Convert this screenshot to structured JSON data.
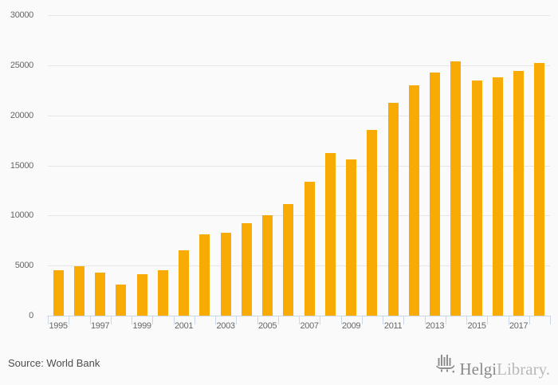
{
  "chart_data": {
    "type": "bar",
    "title": "",
    "xlabel": "",
    "ylabel": "",
    "categories": [
      "1995",
      "1996",
      "1997",
      "1998",
      "1999",
      "2000",
      "2001",
      "2002",
      "2003",
      "2004",
      "2005",
      "2006",
      "2007",
      "2008",
      "2009",
      "2010",
      "2011",
      "2012",
      "2013",
      "2014",
      "2015",
      "2016",
      "2017",
      "2018"
    ],
    "values": [
      4550,
      4900,
      4300,
      3100,
      4150,
      4500,
      6500,
      8100,
      8300,
      9200,
      10000,
      11150,
      13350,
      16200,
      15600,
      18550,
      21250,
      23000,
      24300,
      25400,
      23500,
      23800,
      24400,
      25250
    ],
    "ylim": [
      0,
      30000
    ],
    "ytick_step": 5000,
    "ytick_labels": [
      "0",
      "5000",
      "10000",
      "15000",
      "20000",
      "25000",
      "30000"
    ],
    "x_labeled_categories": [
      "1995",
      "1997",
      "1999",
      "2001",
      "2003",
      "2005",
      "2007",
      "2009",
      "2011",
      "2013",
      "2015",
      "2017"
    ],
    "grid": "horizontal",
    "legend": "none",
    "bar_color": "#f8ab05",
    "grid_color": "#e6e6e6",
    "axis_color": "#ccd6eb",
    "tick_label_color": "#666666",
    "background_color": "#fafafa"
  },
  "footer": {
    "source_label": "Source: World Bank"
  },
  "logo": {
    "brand_primary": "Helgi",
    "brand_secondary": "Library.",
    "icon": "helgi-ship-icon"
  }
}
